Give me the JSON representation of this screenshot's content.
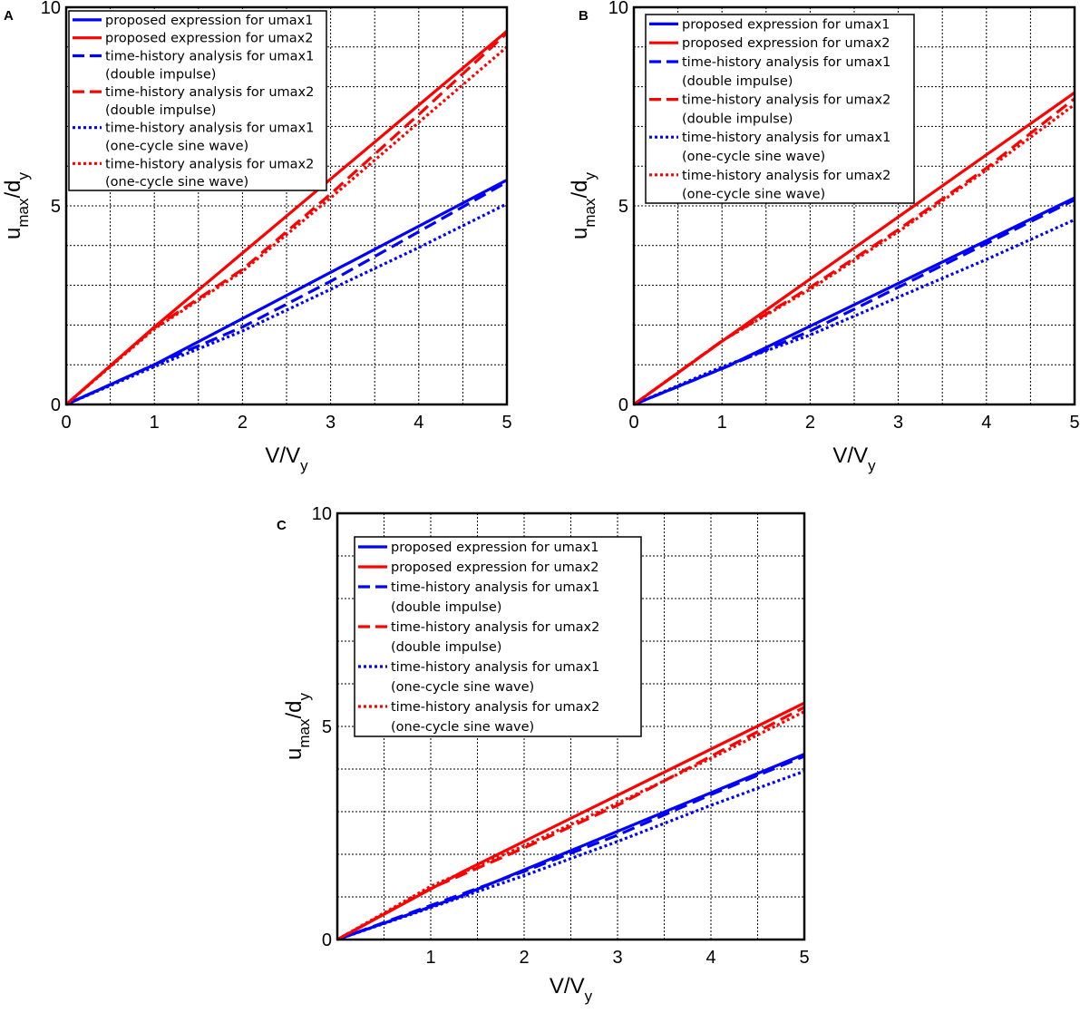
{
  "chart_data": [
    {
      "panel": "A",
      "type": "line",
      "xlim": [
        0,
        5
      ],
      "ylim": [
        0,
        10
      ],
      "xticks": [
        "0",
        "1",
        "2",
        "3",
        "4",
        "5"
      ],
      "yticks": [
        "0",
        "5",
        "10"
      ],
      "xlabel": {
        "main": "V/V",
        "sub": "y"
      },
      "ylabel": {
        "main": "u",
        "sub1": "max",
        "mid": "/d",
        "sub2": "y"
      },
      "grid": true,
      "legend_position": "top-left",
      "series": [
        {
          "name": "proposed expression for umax1",
          "color": "#0000ff",
          "style": "solid",
          "x": [
            0,
            1,
            5
          ],
          "y": [
            0,
            1.0,
            5.65
          ]
        },
        {
          "name": "proposed expression for umax2",
          "color": "#ff0000",
          "style": "solid",
          "x": [
            0,
            1,
            5
          ],
          "y": [
            0,
            1.95,
            9.4
          ]
        },
        {
          "name": "time-history analysis for umax1\n(double impulse)",
          "color": "#0000ff",
          "style": "dashed",
          "x": [
            0,
            1,
            2,
            3,
            4,
            5
          ],
          "y": [
            0,
            1.0,
            1.95,
            3.1,
            4.35,
            5.6
          ]
        },
        {
          "name": "time-history analysis for umax2\n(double impulse)",
          "color": "#ff0000",
          "style": "dashed",
          "x": [
            0,
            1,
            2,
            3,
            4,
            5
          ],
          "y": [
            0,
            1.93,
            3.4,
            5.3,
            7.3,
            9.35
          ]
        },
        {
          "name": "time-history analysis for umax1\n(one-cycle sine wave)",
          "color": "#0000ff",
          "style": "dotted",
          "x": [
            0,
            1,
            2,
            3,
            4,
            5
          ],
          "y": [
            0,
            0.95,
            1.85,
            2.9,
            3.95,
            5.05
          ]
        },
        {
          "name": "time-history analysis for umax2\n(one-cycle sine wave)",
          "color": "#ff0000",
          "style": "dotted",
          "x": [
            0,
            1,
            2,
            3,
            4,
            5
          ],
          "y": [
            0,
            1.9,
            3.35,
            5.2,
            7.1,
            9.0
          ]
        }
      ]
    },
    {
      "panel": "B",
      "type": "line",
      "xlim": [
        0,
        5
      ],
      "ylim": [
        0,
        10
      ],
      "xticks": [
        "0",
        "1",
        "2",
        "3",
        "4",
        "5"
      ],
      "yticks": [
        "0",
        "5",
        "10"
      ],
      "xlabel": {
        "main": "V/V",
        "sub": "y"
      },
      "ylabel": {
        "main": "u",
        "sub1": "max",
        "mid": "/d",
        "sub2": "y"
      },
      "grid": true,
      "legend_position": "top-left",
      "series": [
        {
          "name": "proposed expression for umax1",
          "color": "#0000ff",
          "style": "solid",
          "x": [
            0,
            1.05,
            5
          ],
          "y": [
            0,
            0.95,
            5.2
          ]
        },
        {
          "name": "proposed expression for umax2",
          "color": "#ff0000",
          "style": "solid",
          "x": [
            0,
            1.1,
            5
          ],
          "y": [
            0,
            1.75,
            7.85
          ]
        },
        {
          "name": "time-history analysis for umax1\n(double impulse)",
          "color": "#0000ff",
          "style": "dashed",
          "x": [
            0,
            1,
            2,
            3,
            4,
            5
          ],
          "y": [
            0,
            0.9,
            1.85,
            2.95,
            4.05,
            5.15
          ]
        },
        {
          "name": "time-history analysis for umax2\n(double impulse)",
          "color": "#ff0000",
          "style": "dashed",
          "x": [
            0,
            1,
            2,
            3,
            4,
            5
          ],
          "y": [
            0,
            1.6,
            2.95,
            4.4,
            5.95,
            7.7
          ]
        },
        {
          "name": "time-history analysis for umax1\n(one-cycle sine wave)",
          "color": "#0000ff",
          "style": "dotted",
          "x": [
            0,
            1,
            2,
            3,
            4,
            5
          ],
          "y": [
            0,
            0.95,
            1.75,
            2.7,
            3.65,
            4.65
          ]
        },
        {
          "name": "time-history analysis for umax2\n(one-cycle sine wave)",
          "color": "#ff0000",
          "style": "dotted",
          "x": [
            0,
            1,
            2,
            3,
            4,
            5
          ],
          "y": [
            0,
            1.6,
            2.9,
            4.35,
            5.9,
            7.55
          ]
        }
      ]
    },
    {
      "panel": "C",
      "type": "line",
      "xlim": [
        0,
        5
      ],
      "ylim": [
        0,
        10
      ],
      "xticks": [
        "1",
        "2",
        "3",
        "4",
        "5"
      ],
      "yticks": [
        "0",
        "5",
        "10"
      ],
      "xlabel": {
        "main": "V/V",
        "sub": "y"
      },
      "ylabel": {
        "main": "u",
        "sub1": "max",
        "mid": "/d",
        "sub2": "y"
      },
      "grid": true,
      "legend_position": "top-left",
      "series": [
        {
          "name": "proposed expression for umax1",
          "color": "#0000ff",
          "style": "solid",
          "x": [
            0,
            1.3,
            5
          ],
          "y": [
            0,
            1.0,
            4.35
          ]
        },
        {
          "name": "proposed expression for umax2",
          "color": "#ff0000",
          "style": "solid",
          "x": [
            0,
            1.35,
            5
          ],
          "y": [
            0,
            1.6,
            5.55
          ]
        },
        {
          "name": "time-history analysis for umax1\n(double impulse)",
          "color": "#0000ff",
          "style": "dashed",
          "x": [
            0,
            1,
            2,
            3,
            4,
            5
          ],
          "y": [
            0,
            0.8,
            1.6,
            2.45,
            3.4,
            4.3
          ]
        },
        {
          "name": "time-history analysis for umax2\n(double impulse)",
          "color": "#ff0000",
          "style": "dashed",
          "x": [
            0,
            1,
            2,
            3,
            4,
            5
          ],
          "y": [
            0,
            1.2,
            2.15,
            3.15,
            4.3,
            5.45
          ]
        },
        {
          "name": "time-history analysis for umax1\n(one-cycle sine wave)",
          "color": "#0000ff",
          "style": "dotted",
          "x": [
            0,
            1,
            2,
            3,
            4,
            5
          ],
          "y": [
            0,
            0.75,
            1.5,
            2.3,
            3.15,
            3.95
          ]
        },
        {
          "name": "time-history analysis for umax2\n(one-cycle sine wave)",
          "color": "#ff0000",
          "style": "dotted",
          "x": [
            0,
            1,
            2,
            3,
            4,
            5
          ],
          "y": [
            0,
            1.25,
            2.2,
            3.2,
            4.25,
            5.35
          ]
        }
      ]
    }
  ]
}
